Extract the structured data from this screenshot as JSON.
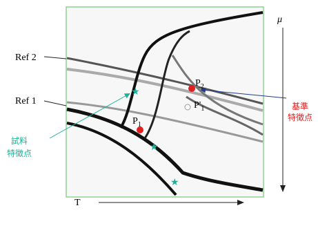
{
  "axes": {
    "vertical": "μ",
    "horizontal": "T"
  },
  "references": [
    "Ref 2",
    "Ref 1"
  ],
  "points": [
    {
      "label": "P",
      "subscript": "2"
    },
    {
      "label": "P",
      "subscript": "1"
    },
    {
      "label": "P'",
      "subscript": "1"
    }
  ],
  "annotations": {
    "reference": [
      "基準",
      "特徴点"
    ],
    "sample": [
      "試料",
      "特徴点"
    ]
  }
}
